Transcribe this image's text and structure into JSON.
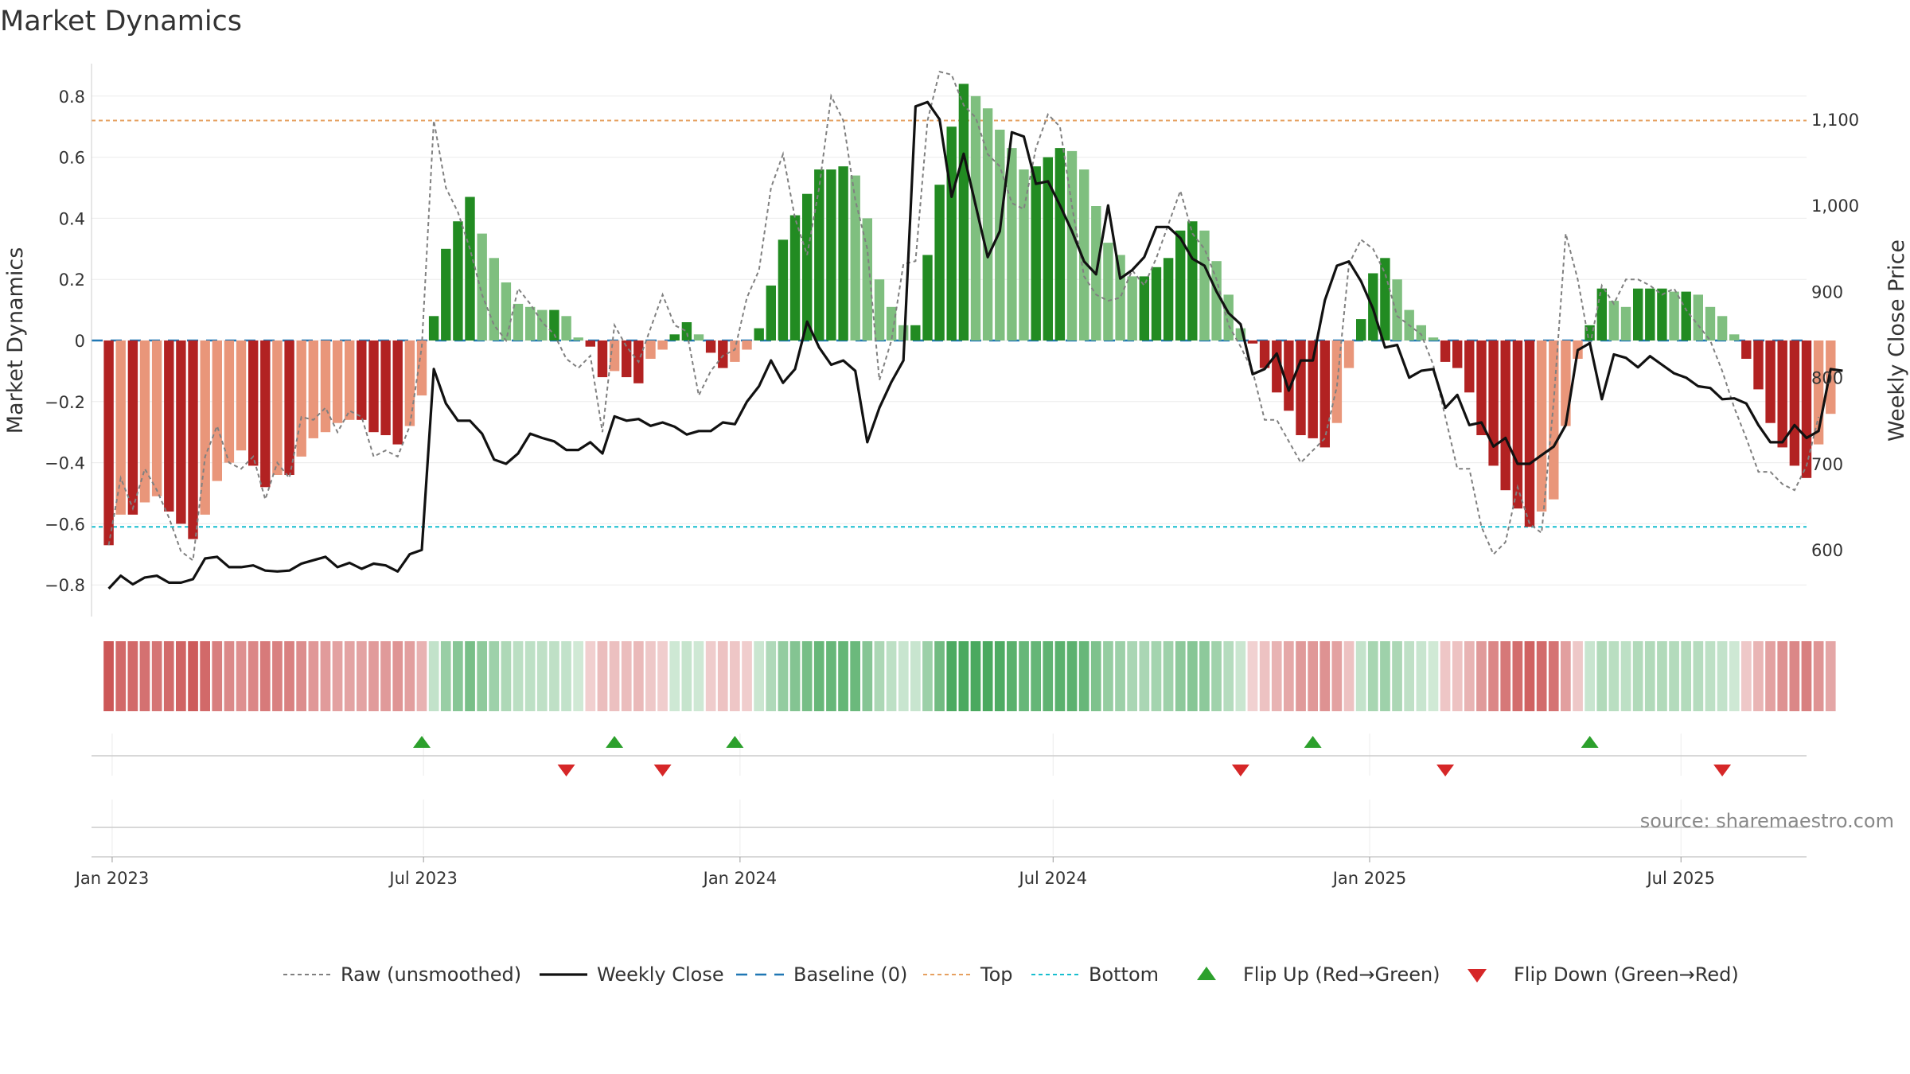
{
  "title": "Market Dynamics",
  "source": "source: sharemaestro.com",
  "colors": {
    "strong_neg": "#b22222",
    "weak_neg": "#e9967a",
    "strong_pos": "#228b22",
    "weak_pos": "#7fbf7f",
    "top_line": "#e6a060",
    "bottom_line": "#17becf",
    "baseline": "#1f77b4",
    "raw": "#808080",
    "close": "#111111",
    "flip_up": "#2ca02c",
    "flip_down": "#d62728"
  },
  "chart_data": {
    "type": "bar",
    "title": "Market Dynamics",
    "ylabel": "Market Dynamics",
    "y2label": "Weekly Close Price",
    "ylim": [
      -0.9,
      0.9
    ],
    "y2lim": [
      530,
      1160
    ],
    "yticks": [
      "0.8",
      "0.6",
      "0.4",
      "0.2",
      "0",
      "−0.2",
      "−0.4",
      "−0.6",
      "−0.8"
    ],
    "yticks_values": [
      0.8,
      0.6,
      0.4,
      0.2,
      0,
      -0.2,
      -0.4,
      -0.6,
      -0.8
    ],
    "y2ticks": [
      "1,100",
      "1,000",
      "900",
      "800",
      "700",
      "600"
    ],
    "y2ticks_values": [
      1100,
      1000,
      900,
      800,
      700,
      600
    ],
    "x_start": "2022-12-30",
    "x_step_days": 7,
    "xlim": [
      "2022-12-20",
      "2025-09-12"
    ],
    "xticks": [
      "Jan 2023",
      "Jul 2023",
      "Jan 2024",
      "Jul 2024",
      "Jan 2025",
      "Jul 2025"
    ],
    "xticks_dates": [
      "2023-01-01",
      "2023-07-01",
      "2024-01-01",
      "2024-07-01",
      "2025-01-01",
      "2025-07-01"
    ],
    "top_level": 0.72,
    "bottom_level": -0.61,
    "legend": [
      "Raw (unsmoothed)",
      "Weekly Close",
      "Baseline (0)",
      "Top",
      "Bottom",
      "Flip Up (Red→Green)",
      "Flip Down (Green→Red)"
    ],
    "legend_position": "bottom",
    "grid": true,
    "smoothed": [
      -0.67,
      -0.57,
      -0.57,
      -0.53,
      -0.51,
      -0.56,
      -0.6,
      -0.65,
      -0.57,
      -0.46,
      -0.4,
      -0.36,
      -0.41,
      -0.48,
      -0.44,
      -0.44,
      -0.38,
      -0.32,
      -0.3,
      -0.27,
      -0.26,
      -0.26,
      -0.3,
      -0.31,
      -0.34,
      -0.28,
      -0.18,
      0.08,
      0.3,
      0.39,
      0.47,
      0.35,
      0.27,
      0.19,
      0.12,
      0.11,
      0.1,
      0.1,
      0.08,
      0.01,
      -0.02,
      -0.12,
      -0.1,
      -0.12,
      -0.14,
      -0.06,
      -0.03,
      0.02,
      0.06,
      0.02,
      -0.04,
      -0.09,
      -0.07,
      -0.03,
      0.04,
      0.18,
      0.33,
      0.41,
      0.48,
      0.56,
      0.56,
      0.57,
      0.54,
      0.4,
      0.2,
      0.11,
      0.05,
      0.05,
      0.28,
      0.51,
      0.7,
      0.84,
      0.8,
      0.76,
      0.69,
      0.63,
      0.56,
      0.57,
      0.6,
      0.63,
      0.62,
      0.56,
      0.44,
      0.32,
      0.28,
      0.21,
      0.21,
      0.24,
      0.27,
      0.36,
      0.39,
      0.36,
      0.26,
      0.15,
      0.04,
      -0.01,
      -0.09,
      -0.17,
      -0.23,
      -0.31,
      -0.32,
      -0.35,
      -0.27,
      -0.09,
      0.07,
      0.22,
      0.27,
      0.2,
      0.1,
      0.05,
      0.01,
      -0.07,
      -0.09,
      -0.17,
      -0.31,
      -0.41,
      -0.49,
      -0.55,
      -0.61,
      -0.56,
      -0.52,
      -0.28,
      -0.06,
      0.05,
      0.17,
      0.13,
      0.11,
      0.17,
      0.17,
      0.17,
      0.16,
      0.16,
      0.15,
      0.11,
      0.08,
      0.02,
      -0.06,
      -0.16,
      -0.27,
      -0.35,
      -0.41,
      -0.45,
      -0.34,
      -0.24
    ],
    "raw": [
      -0.67,
      -0.45,
      -0.55,
      -0.42,
      -0.49,
      -0.58,
      -0.69,
      -0.72,
      -0.38,
      -0.28,
      -0.4,
      -0.42,
      -0.38,
      -0.52,
      -0.4,
      -0.45,
      -0.25,
      -0.26,
      -0.22,
      -0.3,
      -0.23,
      -0.25,
      -0.38,
      -0.36,
      -0.38,
      -0.28,
      -0.02,
      0.72,
      0.5,
      0.42,
      0.3,
      0.15,
      0.05,
      0.0,
      0.17,
      0.12,
      0.06,
      0.02,
      -0.06,
      -0.09,
      -0.05,
      -0.3,
      0.05,
      -0.02,
      -0.07,
      0.04,
      0.15,
      0.05,
      0.03,
      -0.18,
      -0.1,
      -0.05,
      -0.03,
      0.14,
      0.23,
      0.5,
      0.61,
      0.4,
      0.28,
      0.5,
      0.8,
      0.72,
      0.46,
      0.3,
      -0.13,
      0.0,
      0.25,
      0.26,
      0.72,
      0.88,
      0.87,
      0.77,
      0.73,
      0.61,
      0.57,
      0.45,
      0.43,
      0.63,
      0.74,
      0.7,
      0.44,
      0.21,
      0.15,
      0.13,
      0.14,
      0.23,
      0.18,
      0.27,
      0.38,
      0.49,
      0.35,
      0.3,
      0.2,
      0.05,
      -0.02,
      -0.1,
      -0.26,
      -0.26,
      -0.33,
      -0.4,
      -0.36,
      -0.32,
      -0.15,
      0.25,
      0.33,
      0.3,
      0.22,
      0.08,
      0.05,
      0.02,
      -0.08,
      -0.25,
      -0.42,
      -0.42,
      -0.61,
      -0.7,
      -0.66,
      -0.48,
      -0.6,
      -0.63,
      -0.2,
      0.35,
      0.2,
      -0.02,
      0.18,
      0.12,
      0.2,
      0.2,
      0.18,
      0.15,
      0.17,
      0.1,
      0.05,
      0.0,
      -0.1,
      -0.22,
      -0.32,
      -0.43,
      -0.43,
      -0.47,
      -0.49,
      -0.41,
      -0.25
    ],
    "close": [
      555,
      570,
      560,
      568,
      570,
      562,
      562,
      566,
      590,
      592,
      580,
      580,
      582,
      576,
      575,
      576,
      584,
      588,
      592,
      580,
      585,
      578,
      584,
      582,
      575,
      595,
      600,
      810,
      770,
      750,
      750,
      735,
      705,
      700,
      712,
      735,
      730,
      726,
      716,
      716,
      725,
      712,
      755,
      750,
      752,
      744,
      748,
      743,
      734,
      738,
      738,
      748,
      746,
      772,
      790,
      820,
      794,
      810,
      865,
      835,
      815,
      820,
      808,
      725,
      765,
      795,
      820,
      1115,
      1120,
      1100,
      1010,
      1060,
      1000,
      940,
      970,
      1085,
      1080,
      1025,
      1028,
      1000,
      970,
      935,
      920,
      1000,
      915,
      925,
      940,
      975,
      975,
      962,
      938,
      930,
      900,
      875,
      862,
      804,
      810,
      828,
      785,
      820,
      820,
      890,
      930,
      935,
      912,
      880,
      835,
      838,
      800,
      808,
      810,
      765,
      780,
      745,
      748,
      720,
      730,
      700,
      700,
      710,
      720,
      745,
      832,
      840,
      775,
      827,
      823,
      812,
      825,
      815,
      805,
      800,
      790,
      788,
      775,
      776,
      770,
      745,
      725,
      725,
      745,
      730,
      738,
      810,
      808
    ]
  },
  "flip_markers": {
    "up_dates": [
      "2023-06-30",
      "2023-10-20",
      "2023-12-29",
      "2024-11-29",
      "2025-05-09"
    ],
    "down_dates": [
      "2023-09-22",
      "2023-11-17",
      "2024-10-18",
      "2025-02-14",
      "2025-07-25"
    ]
  }
}
